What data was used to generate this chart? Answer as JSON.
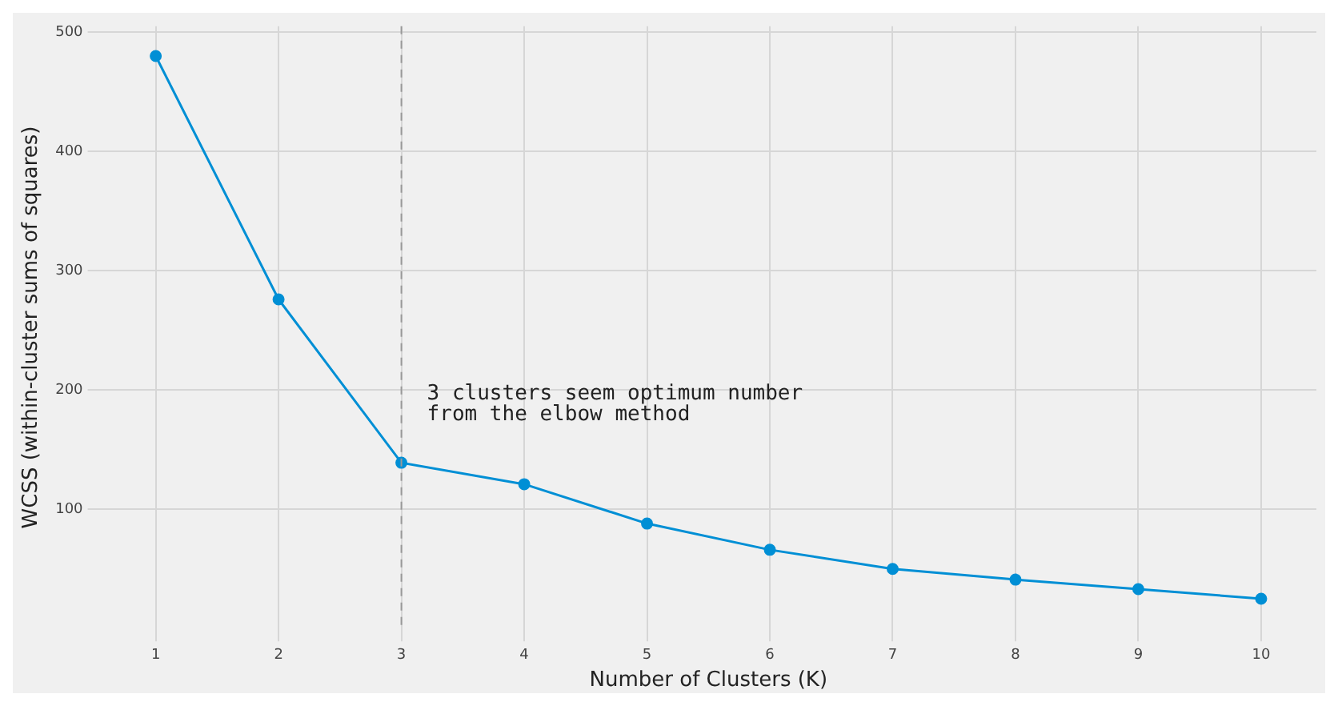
{
  "chart_data": {
    "type": "line",
    "xlabel": "Number of Clusters (K)",
    "ylabel": "WCSS (within-cluster sums of squares)",
    "x": [
      1,
      2,
      3,
      4,
      5,
      6,
      7,
      8,
      9,
      10
    ],
    "series": [
      {
        "color": "#008fd5",
        "values": [
          480,
          276,
          139,
          121,
          88,
          66,
          50,
          41,
          33,
          25
        ]
      }
    ],
    "xlim": [
      0.55,
      10.45
    ],
    "xticks": [
      1,
      2,
      3,
      4,
      5,
      6,
      7,
      8,
      9,
      10
    ],
    "ylim": [
      0,
      505
    ],
    "yticks": [
      100,
      200,
      300,
      400,
      500
    ],
    "grid": true,
    "marker": "circle",
    "line_style": "solid",
    "legend": false,
    "ref_lines": [
      {
        "axis": "x",
        "value": 3,
        "color": "#999999",
        "line_style": "dashed"
      }
    ],
    "annotations": [
      "3 clusters seem optimum number\nfrom the elbow method"
    ]
  }
}
